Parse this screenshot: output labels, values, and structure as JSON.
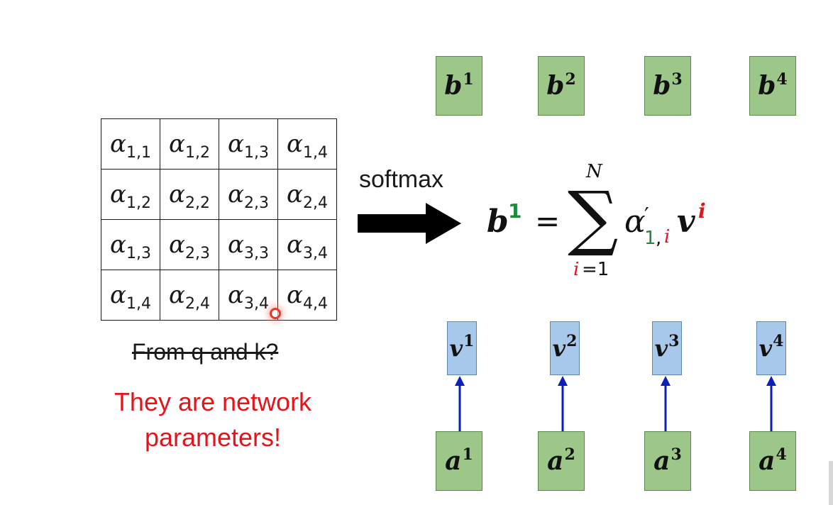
{
  "alpha_table": {
    "symbol": "α",
    "rows": [
      [
        "1,1",
        "1,2",
        "1,3",
        "1,4"
      ],
      [
        "1,2",
        "2,2",
        "2,3",
        "2,4"
      ],
      [
        "1,3",
        "2,3",
        "3,3",
        "3,4"
      ],
      [
        "1,4",
        "2,4",
        "3,4",
        "4,4"
      ]
    ]
  },
  "struck_caption": "From q and k?",
  "highlight_caption": {
    "line1": "They are network",
    "line2": "parameters!"
  },
  "arrow_label": "softmax",
  "formula": {
    "lhs": "b",
    "lhs_sup": "1",
    "equals": "=",
    "sum_symbol": "∑",
    "upper_limit": "N",
    "lower_var": "i",
    "lower_rest": "=1",
    "alpha": "α",
    "prime": "′",
    "sub_first": "1",
    "sub_comma": ",",
    "sub_second": "i",
    "v": "v",
    "v_sup": "i"
  },
  "outputs": [
    {
      "base": "b",
      "sup": "1"
    },
    {
      "base": "b",
      "sup": "2"
    },
    {
      "base": "b",
      "sup": "3"
    },
    {
      "base": "b",
      "sup": "4"
    }
  ],
  "values": [
    {
      "base": "v",
      "sup": "1"
    },
    {
      "base": "v",
      "sup": "2"
    },
    {
      "base": "v",
      "sup": "3"
    },
    {
      "base": "v",
      "sup": "4"
    }
  ],
  "inputs": [
    {
      "base": "a",
      "sup": "1"
    },
    {
      "base": "a",
      "sup": "2"
    },
    {
      "base": "a",
      "sup": "3"
    },
    {
      "base": "a",
      "sup": "4"
    }
  ],
  "colors": {
    "green_box": "#9dc789",
    "blue_box": "#a7c8ea",
    "arrow_blue": "#0d1fb8",
    "highlight_red": "#e4141b",
    "index_green": "#1f8a3f"
  }
}
